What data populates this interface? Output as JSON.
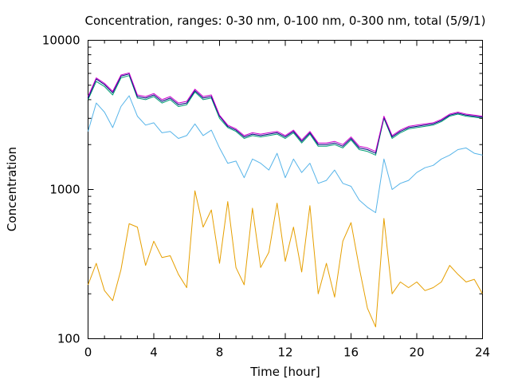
{
  "chart_data": {
    "type": "line",
    "title": "Concentration, ranges: 0-30 nm, 0-100 nm, 0-300 nm, total (5/9/1)",
    "xlabel": "Time [hour]",
    "ylabel": "Concentration",
    "xlim": [
      0,
      24
    ],
    "ylim": [
      100,
      10000
    ],
    "yscale": "log",
    "grid": false,
    "legend": "none",
    "x_ticks": [
      0,
      4,
      8,
      12,
      16,
      20,
      24
    ],
    "x_tick_labels": [
      "0",
      "4",
      "8",
      "12",
      "16",
      "20",
      "24"
    ],
    "y_ticks": [
      100,
      1000,
      10000
    ],
    "y_tick_labels": [
      "100",
      "1000",
      "10000"
    ],
    "x": [
      0,
      0.5,
      1.0,
      1.5,
      2.0,
      2.5,
      3.0,
      3.5,
      4.0,
      4.5,
      5.0,
      5.5,
      6.0,
      6.5,
      7.0,
      7.5,
      8.0,
      8.5,
      9.0,
      9.5,
      10.0,
      10.5,
      11.0,
      11.5,
      12.0,
      12.5,
      13.0,
      13.5,
      14.0,
      14.5,
      15.0,
      15.5,
      16.0,
      16.5,
      17.0,
      17.5,
      18.0,
      18.5,
      19.0,
      19.5,
      20.0,
      20.5,
      21.0,
      21.5,
      22.0,
      22.5,
      23.0,
      23.5,
      24.0
    ],
    "series": [
      {
        "color": "#e69f00",
        "values": [
          230,
          320,
          210,
          180,
          290,
          590,
          560,
          310,
          450,
          350,
          360,
          270,
          220,
          980,
          560,
          730,
          320,
          830,
          300,
          230,
          750,
          300,
          380,
          810,
          330,
          560,
          280,
          780,
          200,
          320,
          190,
          450,
          600,
          300,
          160,
          120,
          640,
          200,
          240,
          220,
          240,
          210,
          220,
          240,
          310,
          270,
          240,
          250,
          200
        ]
      },
      {
        "color": "#56b4e9",
        "values": [
          2450,
          3800,
          3300,
          2600,
          3600,
          4250,
          3100,
          2700,
          2800,
          2400,
          2450,
          2200,
          2300,
          2750,
          2300,
          2500,
          1900,
          1500,
          1550,
          1200,
          1600,
          1500,
          1350,
          1750,
          1200,
          1600,
          1300,
          1500,
          1100,
          1150,
          1350,
          1100,
          1050,
          850,
          760,
          700,
          1600,
          1000,
          1100,
          1150,
          1300,
          1400,
          1450,
          1600,
          1700,
          1850,
          1900,
          1750,
          1700
        ]
      },
      {
        "color": "#009e73",
        "values": [
          4000,
          5300,
          4900,
          4300,
          5600,
          5800,
          4100,
          4000,
          4200,
          3800,
          4000,
          3600,
          3700,
          4500,
          4000,
          4100,
          3000,
          2600,
          2450,
          2200,
          2300,
          2250,
          2300,
          2350,
          2200,
          2400,
          2050,
          2350,
          1950,
          1950,
          2000,
          1900,
          2150,
          1850,
          1800,
          1700,
          3000,
          2200,
          2400,
          2550,
          2600,
          2650,
          2700,
          2850,
          3100,
          3200,
          3100,
          3050,
          3000
        ]
      },
      {
        "color": "#000080",
        "values": [
          4100,
          5500,
          5050,
          4450,
          5750,
          5950,
          4200,
          4100,
          4300,
          3900,
          4100,
          3700,
          3800,
          4600,
          4100,
          4200,
          3100,
          2650,
          2500,
          2250,
          2350,
          2300,
          2350,
          2400,
          2250,
          2450,
          2100,
          2400,
          2000,
          2000,
          2050,
          1950,
          2200,
          1900,
          1850,
          1750,
          3050,
          2250,
          2450,
          2600,
          2650,
          2700,
          2750,
          2900,
          3150,
          3250,
          3150,
          3100,
          3050
        ]
      },
      {
        "color": "#cc00cc",
        "values": [
          4200,
          5600,
          5150,
          4550,
          5850,
          6050,
          4300,
          4200,
          4400,
          4000,
          4200,
          3800,
          3900,
          4700,
          4200,
          4300,
          3150,
          2700,
          2550,
          2300,
          2400,
          2350,
          2400,
          2450,
          2300,
          2500,
          2150,
          2450,
          2050,
          2050,
          2100,
          2000,
          2250,
          1950,
          1900,
          1800,
          3100,
          2300,
          2500,
          2650,
          2700,
          2750,
          2800,
          2950,
          3200,
          3300,
          3200,
          3150,
          3100
        ]
      }
    ]
  }
}
